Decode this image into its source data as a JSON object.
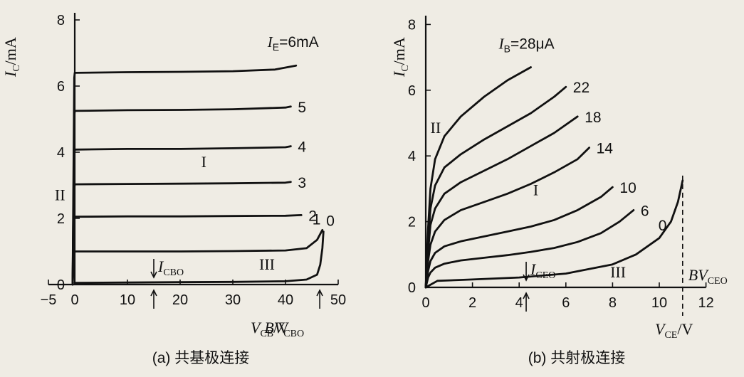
{
  "chart_data": [
    {
      "type": "line",
      "caption": "(a) 共基极连接",
      "ylabel": "I_C/mA",
      "xlabel": "V_CB/V",
      "xlim": [
        -5,
        50
      ],
      "ylim": [
        0,
        8
      ],
      "x_ticks": [
        "−5",
        "0",
        "10",
        "20",
        "30",
        "40",
        "50"
      ],
      "y_ticks": [
        "0",
        "2",
        "4",
        "6",
        "8"
      ],
      "param_prefix": "I_E=",
      "series": [
        {
          "name": "6mA",
          "points": [
            [
              -0.4,
              0
            ],
            [
              -0.1,
              6.25
            ],
            [
              0,
              6.4
            ],
            [
              10,
              6.42
            ],
            [
              20,
              6.43
            ],
            [
              30,
              6.45
            ],
            [
              38,
              6.5
            ],
            [
              42,
              6.62
            ]
          ]
        },
        {
          "name": "5",
          "points": [
            [
              -0.4,
              0
            ],
            [
              -0.1,
              5.1
            ],
            [
              0,
              5.25
            ],
            [
              10,
              5.27
            ],
            [
              20,
              5.28
            ],
            [
              30,
              5.3
            ],
            [
              40,
              5.35
            ],
            [
              41,
              5.38
            ]
          ]
        },
        {
          "name": "4",
          "points": [
            [
              -0.4,
              0
            ],
            [
              -0.1,
              3.95
            ],
            [
              0,
              4.08
            ],
            [
              10,
              4.1
            ],
            [
              20,
              4.1
            ],
            [
              30,
              4.12
            ],
            [
              40,
              4.15
            ],
            [
              41,
              4.18
            ]
          ]
        },
        {
          "name": "3",
          "points": [
            [
              -0.4,
              0
            ],
            [
              -0.1,
              2.9
            ],
            [
              0,
              3.03
            ],
            [
              10,
              3.04
            ],
            [
              20,
              3.05
            ],
            [
              30,
              3.06
            ],
            [
              40,
              3.08
            ],
            [
              41,
              3.1
            ]
          ]
        },
        {
          "name": "2",
          "points": [
            [
              -0.4,
              0
            ],
            [
              -0.1,
              1.95
            ],
            [
              0,
              2.05
            ],
            [
              10,
              2.06
            ],
            [
              20,
              2.06
            ],
            [
              30,
              2.07
            ],
            [
              40,
              2.08
            ],
            [
              43,
              2.1
            ]
          ]
        },
        {
          "name": "1",
          "points": [
            [
              -0.4,
              0
            ],
            [
              -0.1,
              0.92
            ],
            [
              0,
              1.0
            ],
            [
              10,
              1.0
            ],
            [
              20,
              1.0
            ],
            [
              30,
              1.01
            ],
            [
              40,
              1.03
            ],
            [
              44,
              1.1
            ],
            [
              46,
              1.35
            ],
            [
              47,
              1.65
            ]
          ]
        },
        {
          "name": "0",
          "points": [
            [
              0,
              0.05
            ],
            [
              10,
              0.06
            ],
            [
              20,
              0.07
            ],
            [
              30,
              0.08
            ],
            [
              40,
              0.1
            ],
            [
              44,
              0.15
            ],
            [
              46,
              0.3
            ],
            [
              46.6,
              0.6
            ],
            [
              47,
              1.1
            ],
            [
              47.2,
              1.6
            ]
          ]
        }
      ],
      "annotations": {
        "region_I": "I",
        "region_II": "II",
        "region_III": "III",
        "icbo_label": "I_CBO",
        "bv_label": "BV_CBO"
      }
    },
    {
      "type": "line",
      "caption": "(b) 共射极连接",
      "ylabel": "I_C/mA",
      "xlabel": "V_CE/V",
      "xlim": [
        0,
        12
      ],
      "ylim": [
        0,
        8
      ],
      "x_ticks": [
        "0",
        "2",
        "4",
        "6",
        "8",
        "10",
        "12"
      ],
      "y_ticks": [
        "0",
        "2",
        "4",
        "6",
        "8"
      ],
      "param_prefix": "I_B=",
      "series": [
        {
          "name": "28μA",
          "points": [
            [
              0,
              0
            ],
            [
              0.1,
              1.8
            ],
            [
              0.2,
              3.0
            ],
            [
              0.4,
              3.9
            ],
            [
              0.8,
              4.6
            ],
            [
              1.5,
              5.2
            ],
            [
              2.5,
              5.8
            ],
            [
              3.5,
              6.3
            ],
            [
              4.5,
              6.7
            ]
          ]
        },
        {
          "name": "22",
          "points": [
            [
              0,
              0
            ],
            [
              0.1,
              1.4
            ],
            [
              0.2,
              2.4
            ],
            [
              0.4,
              3.1
            ],
            [
              0.8,
              3.65
            ],
            [
              1.5,
              4.05
            ],
            [
              2.5,
              4.5
            ],
            [
              3.5,
              4.9
            ],
            [
              4.5,
              5.3
            ],
            [
              5.5,
              5.8
            ],
            [
              6.0,
              6.1
            ]
          ]
        },
        {
          "name": "18",
          "points": [
            [
              0,
              0
            ],
            [
              0.1,
              1.1
            ],
            [
              0.2,
              1.9
            ],
            [
              0.4,
              2.4
            ],
            [
              0.8,
              2.85
            ],
            [
              1.5,
              3.2
            ],
            [
              2.5,
              3.55
            ],
            [
              3.5,
              3.9
            ],
            [
              4.5,
              4.3
            ],
            [
              5.5,
              4.7
            ],
            [
              6.5,
              5.2
            ]
          ]
        },
        {
          "name": "14",
          "points": [
            [
              0,
              0
            ],
            [
              0.1,
              0.8
            ],
            [
              0.2,
              1.3
            ],
            [
              0.4,
              1.7
            ],
            [
              0.8,
              2.05
            ],
            [
              1.5,
              2.35
            ],
            [
              2.5,
              2.6
            ],
            [
              3.5,
              2.85
            ],
            [
              4.5,
              3.15
            ],
            [
              5.5,
              3.5
            ],
            [
              6.5,
              3.9
            ],
            [
              7.0,
              4.25
            ]
          ]
        },
        {
          "name": "10",
          "points": [
            [
              0,
              0
            ],
            [
              0.1,
              0.5
            ],
            [
              0.2,
              0.8
            ],
            [
              0.4,
              1.05
            ],
            [
              0.8,
              1.25
            ],
            [
              1.5,
              1.4
            ],
            [
              2.5,
              1.55
            ],
            [
              3.5,
              1.7
            ],
            [
              4.5,
              1.85
            ],
            [
              5.5,
              2.05
            ],
            [
              6.5,
              2.35
            ],
            [
              7.5,
              2.75
            ],
            [
              8.0,
              3.05
            ]
          ]
        },
        {
          "name": "6",
          "points": [
            [
              0,
              0
            ],
            [
              0.1,
              0.3
            ],
            [
              0.2,
              0.45
            ],
            [
              0.4,
              0.6
            ],
            [
              0.8,
              0.72
            ],
            [
              1.5,
              0.82
            ],
            [
              2.5,
              0.9
            ],
            [
              3.5,
              0.98
            ],
            [
              4.5,
              1.08
            ],
            [
              5.5,
              1.2
            ],
            [
              6.5,
              1.38
            ],
            [
              7.5,
              1.65
            ],
            [
              8.3,
              2.0
            ],
            [
              8.9,
              2.35
            ]
          ]
        },
        {
          "name": "0",
          "points": [
            [
              0,
              0
            ],
            [
              0.5,
              0.2
            ],
            [
              2,
              0.24
            ],
            [
              4,
              0.3
            ],
            [
              6,
              0.42
            ],
            [
              8,
              0.7
            ],
            [
              9,
              1.0
            ],
            [
              10,
              1.5
            ],
            [
              10.5,
              2.0
            ],
            [
              10.8,
              2.6
            ],
            [
              11,
              3.25
            ]
          ]
        }
      ],
      "annotations": {
        "region_I": "I",
        "region_II": "II",
        "region_III": "III",
        "iceo_label": "I_CEO",
        "bv_label": "BV_CEO"
      }
    }
  ]
}
